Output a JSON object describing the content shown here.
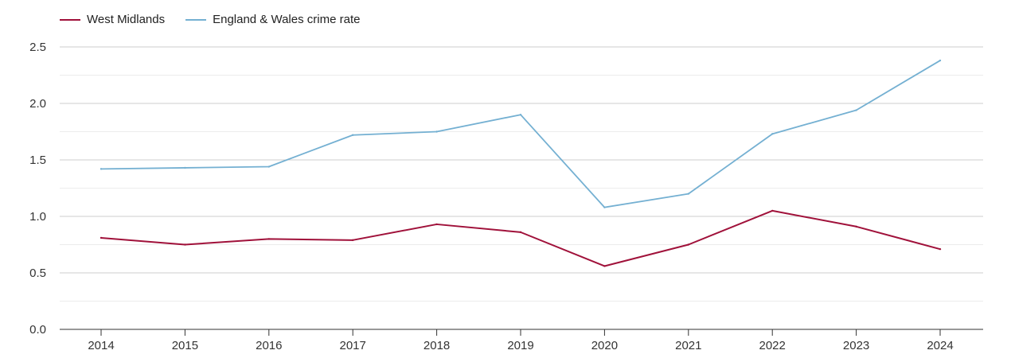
{
  "chart_data": {
    "type": "line",
    "title": "",
    "xlabel": "",
    "ylabel": "",
    "ylim": [
      0,
      2.5
    ],
    "yticks": [
      "0.0",
      "0.5",
      "1.0",
      "1.5",
      "2.0",
      "2.5"
    ],
    "categories": [
      "2014",
      "2015",
      "2016",
      "2017",
      "2018",
      "2019",
      "2020",
      "2021",
      "2022",
      "2023",
      "2024"
    ],
    "grid": true,
    "legend_position": "top-left",
    "series": [
      {
        "name": "West Midlands",
        "color": "#a0113a",
        "values": [
          0.81,
          0.75,
          0.8,
          0.79,
          0.93,
          0.86,
          0.56,
          0.75,
          1.05,
          0.91,
          0.71
        ]
      },
      {
        "name": "England & Wales crime rate",
        "color": "#74b0d2",
        "values": [
          1.42,
          1.43,
          1.44,
          1.72,
          1.75,
          1.9,
          1.08,
          1.2,
          1.73,
          1.94,
          2.38
        ]
      }
    ]
  }
}
